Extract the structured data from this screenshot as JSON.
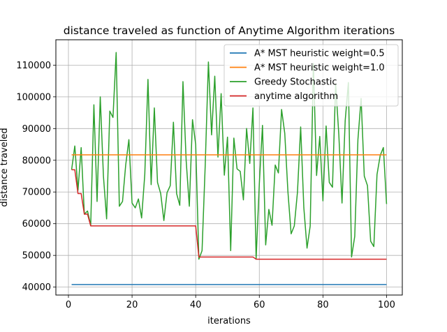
{
  "chart_data": {
    "type": "line",
    "title": "distance traveled as function of Anytime Algorithm iterations",
    "xlabel": "iterations",
    "ylabel": "distance traveled",
    "xlim": [
      -3.95,
      104.95
    ],
    "ylim": [
      37500,
      118000
    ],
    "xticks": [
      0,
      20,
      40,
      60,
      80,
      100
    ],
    "yticks": [
      40000,
      50000,
      60000,
      70000,
      80000,
      90000,
      100000,
      110000
    ],
    "xtick_labels": [
      "0",
      "20",
      "40",
      "60",
      "80",
      "100"
    ],
    "ytick_labels": [
      "40000",
      "50000",
      "60000",
      "70000",
      "80000",
      "90000",
      "100000",
      "110000"
    ],
    "grid": true,
    "legend_position": "top-right",
    "series": [
      {
        "name": "A* MST heuristic weight=0.5",
        "color": "#1f77b4",
        "kind": "constant",
        "x_start": 1,
        "x_end": 100,
        "value": 40800
      },
      {
        "name": "A* MST heuristic weight=1.0",
        "color": "#ff7f0e",
        "kind": "constant",
        "x_start": 1,
        "x_end": 100,
        "value": 81700
      },
      {
        "name": "Greedy Stochastic",
        "color": "#2ca02c",
        "kind": "line",
        "x_start": 1,
        "values": [
          77000,
          84500,
          70500,
          84000,
          63000,
          64000,
          59500,
          97500,
          67000,
          100000,
          75000,
          61500,
          95500,
          93500,
          114000,
          65500,
          67000,
          78500,
          86500,
          66500,
          65000,
          67800,
          61800,
          75500,
          105500,
          72300,
          96500,
          73000,
          69500,
          61000,
          69800,
          72000,
          92000,
          69500,
          65800,
          104800,
          80000,
          65500,
          92800,
          85000,
          48800,
          51500,
          78500,
          111000,
          88000,
          106500,
          81000,
          101000,
          75300,
          87300,
          51500,
          87000,
          77300,
          76500,
          67500,
          90000,
          79000,
          96500,
          49000,
          72500,
          91000,
          53300,
          64500,
          59500,
          78500,
          76000,
          96000,
          88500,
          70000,
          56800,
          59300,
          70000,
          90500,
          65000,
          52300,
          59300,
          110500,
          75200,
          87500,
          67200,
          90800,
          73000,
          71500,
          104000,
          88000,
          66500,
          92500,
          104500,
          49500,
          56000,
          86500,
          99500,
          75000,
          72000,
          54500,
          52800,
          75500,
          81500,
          84000,
          66200
        ]
      },
      {
        "name": "anytime algorithm",
        "color": "#d62728",
        "kind": "step",
        "points": [
          [
            1,
            77000
          ],
          [
            2,
            77000
          ],
          [
            3,
            69500
          ],
          [
            4,
            69500
          ],
          [
            5,
            63000
          ],
          [
            6,
            63000
          ],
          [
            7,
            59300
          ],
          [
            40,
            59300
          ],
          [
            41,
            49500
          ],
          [
            58,
            49500
          ],
          [
            59,
            48800
          ],
          [
            100,
            48800
          ]
        ]
      }
    ]
  }
}
